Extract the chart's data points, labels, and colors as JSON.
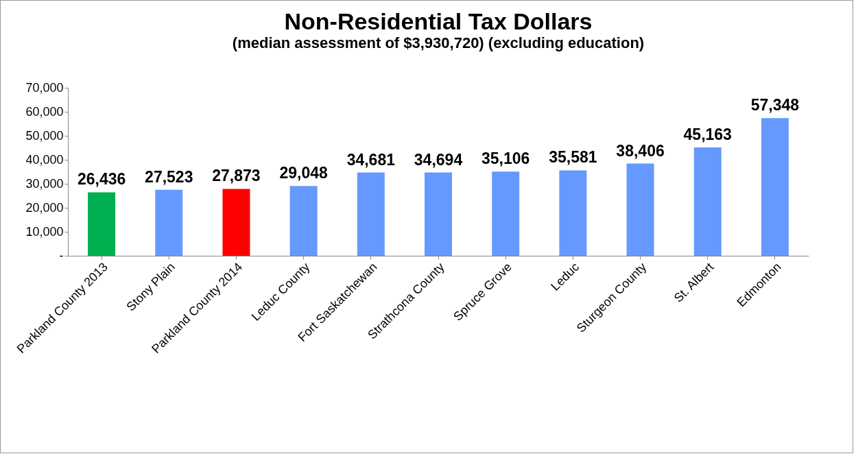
{
  "chart_data": {
    "type": "bar",
    "title": "Non-Residential Tax Dollars",
    "subtitle": "(median assessment of $3,930,720) (excluding education)",
    "categories": [
      "Parkland County 2013",
      "Stony Plain",
      "Parkland County 2014",
      "Leduc County",
      "Fort Saskatchewan",
      "Strathcona County",
      "Spruce Grove",
      "Leduc",
      "Sturgeon County",
      "St. Albert",
      "Edmonton"
    ],
    "values": [
      26436,
      27523,
      27873,
      29048,
      34681,
      34694,
      35106,
      35581,
      38406,
      45163,
      57348
    ],
    "colors": [
      "#00b050",
      "#6699ff",
      "#ff0000",
      "#6699ff",
      "#6699ff",
      "#6699ff",
      "#6699ff",
      "#6699ff",
      "#6699ff",
      "#6699ff",
      "#6699ff"
    ],
    "ylim": [
      0,
      70000
    ],
    "yticks": [
      {
        "value": 0,
        "label": "-"
      },
      {
        "value": 10000,
        "label": "10,000"
      },
      {
        "value": 20000,
        "label": "20,000"
      },
      {
        "value": 30000,
        "label": "30,000"
      },
      {
        "value": 40000,
        "label": "40,000"
      },
      {
        "value": 50000,
        "label": "50,000"
      },
      {
        "value": 60000,
        "label": "60,000"
      },
      {
        "value": 70000,
        "label": "70,000"
      }
    ],
    "value_labels": [
      "26,436",
      "27,523",
      "27,873",
      "29,048",
      "34,681",
      "34,694",
      "35,106",
      "35,581",
      "38,406",
      "45,163",
      "57,348"
    ],
    "grid": false
  }
}
